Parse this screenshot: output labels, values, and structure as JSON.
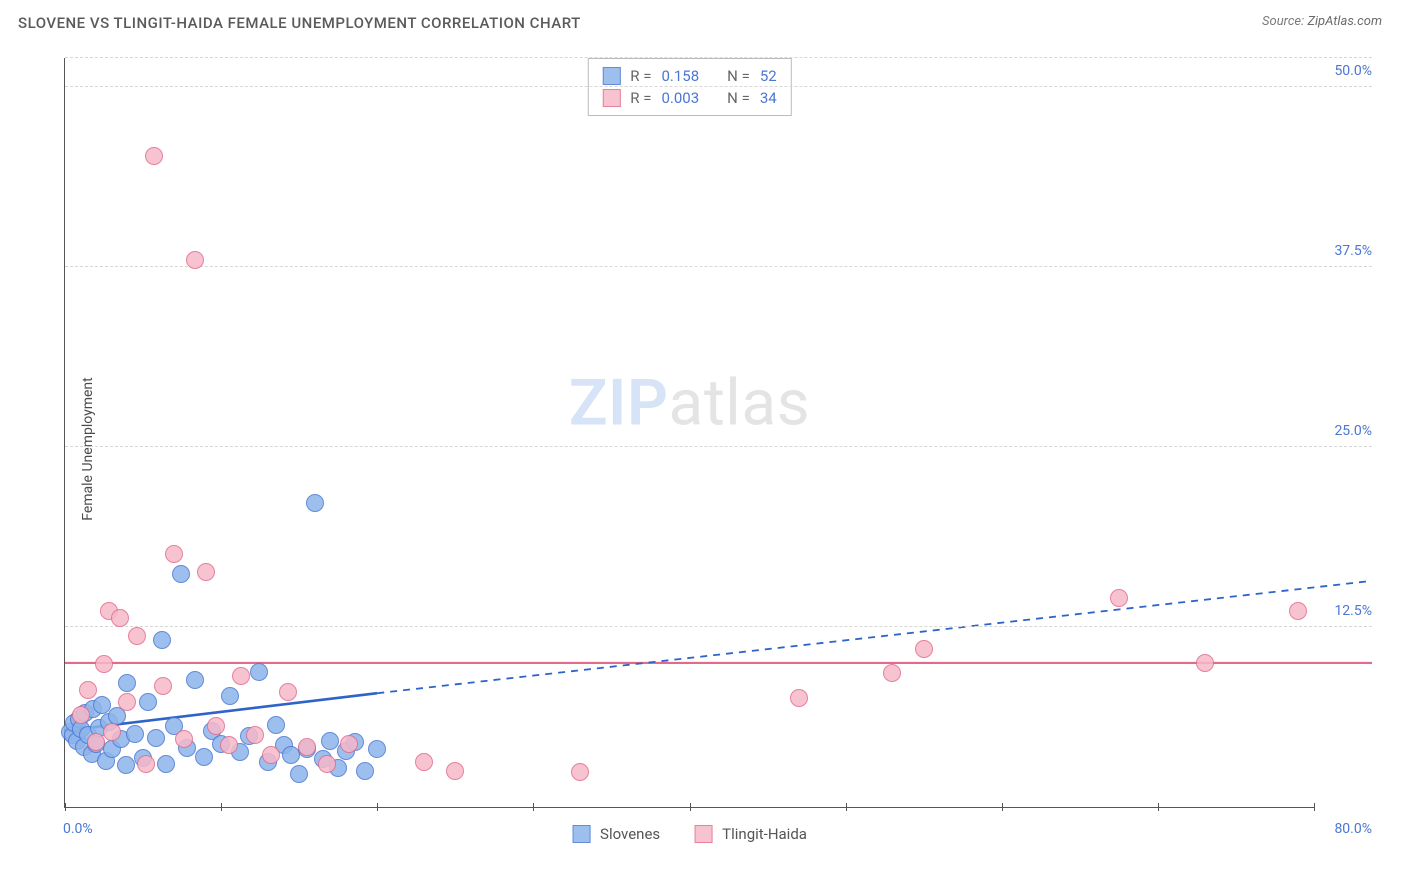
{
  "header": {
    "title": "SLOVENE VS TLINGIT-HAIDA FEMALE UNEMPLOYMENT CORRELATION CHART",
    "source_label": "Source:",
    "source_value": "ZipAtlas.com"
  },
  "ylabel": "Female Unemployment",
  "watermark": {
    "a": "ZIP",
    "b": "atlas"
  },
  "chart": {
    "type": "scatter",
    "xlim": [
      0,
      80
    ],
    "ylim": [
      0,
      52
    ],
    "x_ticks_pct": [
      0,
      10,
      20,
      30,
      40,
      50,
      60,
      70,
      80
    ],
    "x_start_label": "0.0%",
    "x_end_label": "80.0%",
    "y_gridlines": [
      12.5,
      25.0,
      37.5,
      50.0
    ],
    "y_tick_labels": [
      "12.5%",
      "25.0%",
      "37.5%",
      "50.0%"
    ],
    "grid_color": "#d7d7d7",
    "background_color": "#ffffff",
    "axis_color": "#555555",
    "marker_radius": 9,
    "marker_border_width": 1.2,
    "marker_fill_opacity": 0.32,
    "series": [
      {
        "name": "Slovenes",
        "color_fill": "#8db4ea",
        "color_stroke": "#4a76d4",
        "R": "0.158",
        "N": "52",
        "trend": {
          "y_at_x0": 5.3,
          "y_at_x80": 15.7,
          "solid_until_x": 20,
          "stroke": "#2e63c9",
          "width": 2.6,
          "dash": "7,6"
        },
        "points": [
          [
            0.3,
            5.2
          ],
          [
            0.5,
            5.0
          ],
          [
            0.6,
            5.8
          ],
          [
            0.8,
            4.6
          ],
          [
            0.9,
            6.1
          ],
          [
            1.0,
            5.4
          ],
          [
            1.2,
            4.2
          ],
          [
            1.3,
            6.5
          ],
          [
            1.5,
            5.0
          ],
          [
            1.7,
            3.7
          ],
          [
            1.8,
            6.8
          ],
          [
            2.0,
            4.4
          ],
          [
            2.2,
            5.5
          ],
          [
            2.4,
            7.1
          ],
          [
            2.6,
            3.2
          ],
          [
            2.8,
            5.9
          ],
          [
            3.0,
            4.0
          ],
          [
            3.3,
            6.3
          ],
          [
            3.6,
            4.7
          ],
          [
            3.9,
            2.9
          ],
          [
            4.0,
            8.6
          ],
          [
            4.5,
            5.1
          ],
          [
            5.0,
            3.4
          ],
          [
            5.3,
            7.3
          ],
          [
            5.8,
            4.8
          ],
          [
            6.2,
            11.6
          ],
          [
            6.5,
            3.0
          ],
          [
            7.0,
            5.6
          ],
          [
            7.4,
            16.2
          ],
          [
            7.8,
            4.1
          ],
          [
            8.3,
            8.8
          ],
          [
            8.9,
            3.5
          ],
          [
            9.4,
            5.3
          ],
          [
            10.0,
            4.4
          ],
          [
            10.6,
            7.7
          ],
          [
            11.2,
            3.8
          ],
          [
            11.8,
            4.9
          ],
          [
            12.4,
            9.4
          ],
          [
            13.0,
            3.1
          ],
          [
            13.5,
            5.7
          ],
          [
            14.0,
            4.3
          ],
          [
            14.5,
            3.6
          ],
          [
            15.0,
            2.3
          ],
          [
            15.5,
            4.0
          ],
          [
            16.0,
            21.1
          ],
          [
            16.5,
            3.3
          ],
          [
            17.0,
            4.6
          ],
          [
            17.5,
            2.7
          ],
          [
            18.0,
            3.9
          ],
          [
            18.6,
            4.5
          ],
          [
            19.2,
            2.5
          ],
          [
            20.0,
            4.0
          ]
        ]
      },
      {
        "name": "Tlingit-Haida",
        "color_fill": "#f6b9c9",
        "color_stroke": "#e26b8b",
        "R": "0.003",
        "N": "34",
        "trend": {
          "y_flat": 10.0,
          "stroke": "#e26b8b",
          "width": 2.2
        },
        "points": [
          [
            1.0,
            6.4
          ],
          [
            1.5,
            8.1
          ],
          [
            2.0,
            4.5
          ],
          [
            2.5,
            9.9
          ],
          [
            2.8,
            13.6
          ],
          [
            3.0,
            5.2
          ],
          [
            3.5,
            13.1
          ],
          [
            4.0,
            7.3
          ],
          [
            4.6,
            11.9
          ],
          [
            5.2,
            3.0
          ],
          [
            5.7,
            45.2
          ],
          [
            6.3,
            8.4
          ],
          [
            7.0,
            17.6
          ],
          [
            7.6,
            4.7
          ],
          [
            8.3,
            38.0
          ],
          [
            9.0,
            16.3
          ],
          [
            9.7,
            5.6
          ],
          [
            10.5,
            4.3
          ],
          [
            11.3,
            9.1
          ],
          [
            12.2,
            5.0
          ],
          [
            13.2,
            3.6
          ],
          [
            14.3,
            8.0
          ],
          [
            15.5,
            4.2
          ],
          [
            16.8,
            3.0
          ],
          [
            18.2,
            4.4
          ],
          [
            23.0,
            3.1
          ],
          [
            25.0,
            2.5
          ],
          [
            33.0,
            2.4
          ],
          [
            47.0,
            7.6
          ],
          [
            53.0,
            9.3
          ],
          [
            55.0,
            11.0
          ],
          [
            67.5,
            14.5
          ],
          [
            73.0,
            10.0
          ],
          [
            79.0,
            13.6
          ]
        ]
      }
    ]
  },
  "legend_stats": {
    "r_label": "R  =",
    "n_label": "N  ="
  },
  "bottom_legend": {
    "items": [
      "Slovenes",
      "Tlingit-Haida"
    ]
  }
}
